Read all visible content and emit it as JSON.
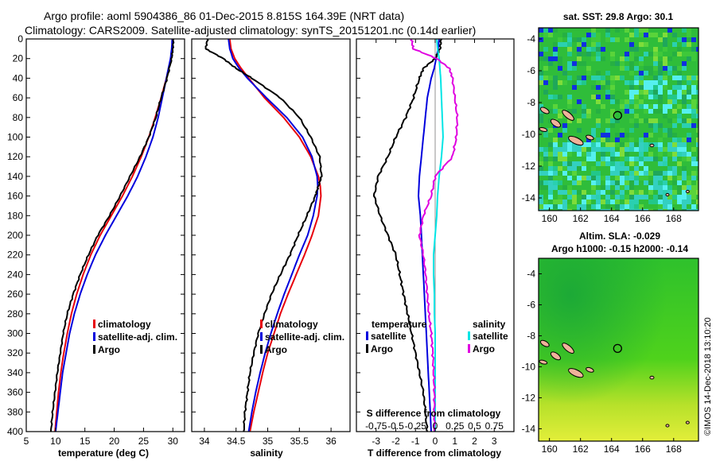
{
  "title": {
    "line1": "Argo profile: aoml 5904386_86 01-Dec-2015 8.815S 164.39E (NRT data)",
    "line2": "Climatology: CARS2009. Satellite-adjusted climatology: synTS_20151201.nc (0.14d earlier)"
  },
  "watermark": "©IMOS 14-Dec-2018 13:10:20",
  "colors": {
    "red": "#e8000b",
    "blue": "#0000dd",
    "black": "#000000",
    "cyan": "#00e5e5",
    "magenta": "#e000e0"
  },
  "chart_data": [
    {
      "type": "line",
      "name": "temperature",
      "xlabel": "temperature (deg C)",
      "xlim": [
        5,
        32
      ],
      "ylim": [
        0,
        400
      ],
      "xticks": [
        5,
        10,
        15,
        20,
        25,
        30
      ],
      "yticks": [
        0,
        20,
        40,
        60,
        80,
        100,
        120,
        140,
        160,
        180,
        200,
        220,
        240,
        260,
        280,
        300,
        320,
        340,
        360,
        380,
        400
      ],
      "legend": [
        "climatology",
        "satellite-adj. clim.",
        "Argo"
      ],
      "depth": [
        0,
        10,
        20,
        40,
        60,
        80,
        100,
        120,
        140,
        160,
        180,
        200,
        220,
        240,
        260,
        280,
        300,
        320,
        340,
        360,
        380,
        400
      ],
      "series": [
        {
          "name": "climatology",
          "color": "red",
          "values": [
            30,
            29.9,
            29.7,
            28.9,
            28.0,
            27.0,
            25.9,
            24.6,
            23.1,
            21.4,
            19.5,
            17.6,
            16.0,
            14.7,
            13.6,
            12.7,
            12.0,
            11.4,
            10.9,
            10.5,
            10.2,
            9.9
          ]
        },
        {
          "name": "satellite-adj. clim.",
          "color": "blue",
          "values": [
            29.9,
            29.8,
            29.6,
            28.9,
            28.2,
            27.5,
            26.6,
            25.4,
            24.0,
            22.3,
            20.4,
            18.5,
            16.8,
            15.4,
            14.2,
            13.2,
            12.4,
            11.8,
            11.2,
            10.8,
            10.4,
            10.0
          ]
        },
        {
          "name": "Argo",
          "color": "black",
          "values": [
            30.1,
            30.0,
            29.8,
            29.0,
            28.0,
            27.1,
            25.9,
            24.4,
            22.7,
            21.0,
            19.2,
            17.2,
            15.6,
            14.2,
            13.0,
            12.0,
            11.3,
            10.8,
            10.3,
            9.9,
            9.5,
            9.2
          ]
        }
      ]
    },
    {
      "type": "line",
      "name": "salinity",
      "xlabel": "salinity",
      "xlim": [
        33.8,
        36.3
      ],
      "ylim": [
        0,
        400
      ],
      "xticks": [
        34,
        34.5,
        35,
        35.5,
        36
      ],
      "legend": [
        "climatology",
        "satellite-adj. clim.",
        "Argo"
      ],
      "depth": [
        0,
        10,
        20,
        30,
        40,
        60,
        80,
        100,
        120,
        140,
        150,
        160,
        180,
        200,
        220,
        240,
        260,
        280,
        300,
        320,
        340,
        360,
        380,
        400
      ],
      "series": [
        {
          "name": "climatology",
          "color": "red",
          "values": [
            34.4,
            34.42,
            34.48,
            34.58,
            34.7,
            34.95,
            35.25,
            35.5,
            35.68,
            35.8,
            35.83,
            35.84,
            35.8,
            35.7,
            35.58,
            35.45,
            35.32,
            35.2,
            35.1,
            35.0,
            34.92,
            34.85,
            34.78,
            34.72
          ]
        },
        {
          "name": "satellite-adj. clim.",
          "color": "blue",
          "values": [
            34.38,
            34.4,
            34.45,
            34.55,
            34.68,
            34.98,
            35.3,
            35.55,
            35.7,
            35.78,
            35.79,
            35.78,
            35.72,
            35.63,
            35.5,
            35.38,
            35.26,
            35.15,
            35.05,
            34.96,
            34.88,
            34.81,
            34.75,
            34.7
          ]
        },
        {
          "name": "Argo",
          "color": "black",
          "values": [
            34.05,
            34.02,
            34.3,
            34.5,
            34.75,
            35.2,
            35.5,
            35.68,
            35.82,
            35.85,
            35.8,
            35.75,
            35.62,
            35.48,
            35.35,
            35.2,
            35.06,
            34.95,
            34.85,
            34.78,
            34.72,
            34.68,
            34.64,
            34.62
          ]
        }
      ]
    },
    {
      "type": "line",
      "name": "difference",
      "xlabel": "T difference from climatology",
      "x2label": "S difference from climatology",
      "xlim": [
        -4,
        4
      ],
      "ylim": [
        0,
        400
      ],
      "xticks": [
        -3,
        -2,
        -1,
        0,
        1,
        2,
        3
      ],
      "x2ticks": [
        -0.75,
        -0.5,
        -0.25,
        0,
        0.25,
        0.5,
        0.75
      ],
      "legend_temperature_title": "temperature",
      "legend_salinity_title": "salinity",
      "legend_temperature": [
        "satellite",
        "Argo"
      ],
      "legend_salinity": [
        "satellite",
        "Argo"
      ],
      "depth": [
        0,
        10,
        20,
        30,
        40,
        60,
        80,
        100,
        120,
        140,
        160,
        180,
        200,
        220,
        240,
        260,
        280,
        300,
        320,
        340,
        360,
        380,
        400
      ],
      "series": [
        {
          "name": "T satellite",
          "color": "blue",
          "values": [
            0.2,
            0.15,
            0.05,
            -0.05,
            -0.2,
            -0.4,
            -0.5,
            -0.6,
            -0.7,
            -0.8,
            -0.85,
            -0.75,
            -0.7,
            -0.65,
            -0.6,
            -0.55,
            -0.5,
            -0.45,
            -0.4,
            -0.35,
            -0.3,
            -0.25,
            -0.2
          ]
        },
        {
          "name": "T Argo",
          "color": "black",
          "values": [
            0.3,
            0.25,
            0.0,
            -0.6,
            -0.8,
            -1.1,
            -1.5,
            -2.0,
            -2.4,
            -2.9,
            -3.1,
            -2.8,
            -2.4,
            -2.0,
            -1.8,
            -1.6,
            -1.4,
            -1.2,
            -1.0,
            -0.8,
            -0.6,
            -0.5,
            -0.4
          ]
        },
        {
          "name": "S satellite",
          "color": "cyan",
          "values": [
            0.02,
            0.03,
            0.05,
            0.06,
            0.07,
            0.08,
            0.09,
            0.1,
            0.08,
            0.05,
            0.03,
            0.02,
            0.0,
            -0.02,
            -0.02,
            -0.01,
            -0.01,
            0.0,
            0.0,
            0.0,
            0.0,
            0.0,
            0.0
          ]
        },
        {
          "name": "S Argo",
          "color": "magenta",
          "values": [
            -0.3,
            -0.28,
            0.02,
            0.18,
            0.22,
            0.25,
            0.28,
            0.27,
            0.22,
            0.0,
            -0.05,
            -0.15,
            -0.2,
            -0.15,
            -0.12,
            -0.1,
            -0.08,
            -0.05,
            -0.03,
            -0.02,
            -0.01,
            -0.01,
            -0.01
          ]
        }
      ]
    },
    {
      "type": "heatmap",
      "name": "sst-map",
      "title": "sat. SST: 29.8  Argo: 30.1",
      "xlim": [
        159.3,
        169.6
      ],
      "ylim": [
        -14.8,
        -3.3
      ],
      "xticks": [
        160,
        162,
        164,
        166,
        168
      ],
      "yticks": [
        -4,
        -6,
        -8,
        -10,
        -12,
        -14
      ],
      "marker": {
        "lon": 164.39,
        "lat": -8.815
      }
    },
    {
      "type": "heatmap",
      "name": "sla-map",
      "title": "Altim. SLA: -0.029",
      "subtitle": "Argo h1000: -0.15 h2000: -0.14",
      "xlim": [
        159.3,
        169.6
      ],
      "ylim": [
        -14.8,
        -3.0
      ],
      "xticks": [
        160,
        162,
        164,
        166,
        168
      ],
      "yticks": [
        -4,
        -6,
        -8,
        -10,
        -12,
        -14
      ],
      "marker": {
        "lon": 164.39,
        "lat": -8.815
      }
    }
  ]
}
